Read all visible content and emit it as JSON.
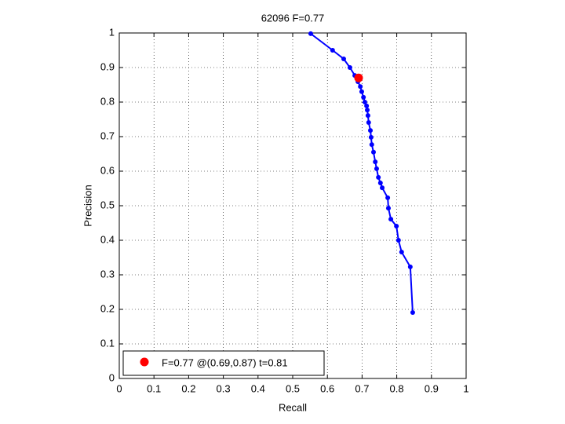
{
  "chart_data": {
    "type": "line",
    "title": "62096 F=0.77",
    "xlabel": "Recall",
    "ylabel": "Precision",
    "series": [
      {
        "color": "#0000ff",
        "x": [
          0.552,
          0.615,
          0.647,
          0.665,
          0.679,
          0.688,
          0.695,
          0.699,
          0.704,
          0.708,
          0.713,
          0.715,
          0.717,
          0.719,
          0.724,
          0.726,
          0.728,
          0.733,
          0.738,
          0.742,
          0.747,
          0.753,
          0.758,
          0.774,
          0.776,
          0.783,
          0.799,
          0.805,
          0.814,
          0.839,
          0.846
        ],
        "values": [
          0.998,
          0.95,
          0.925,
          0.9,
          0.877,
          0.859,
          0.845,
          0.83,
          0.814,
          0.8,
          0.789,
          0.777,
          0.761,
          0.741,
          0.718,
          0.698,
          0.677,
          0.655,
          0.627,
          0.607,
          0.582,
          0.566,
          0.552,
          0.523,
          0.493,
          0.461,
          0.441,
          0.4,
          0.366,
          0.323,
          0.191
        ]
      }
    ],
    "best": {
      "name": "F=0.77 @(0.69,0.87) t=0.81",
      "color": "#ff0000",
      "x": 0.69,
      "y": 0.87
    },
    "xlim": [
      0,
      1
    ],
    "ylim": [
      0,
      1
    ],
    "xticks": [
      0,
      0.1,
      0.2,
      0.3,
      0.4,
      0.5,
      0.6,
      0.7,
      0.8,
      0.9,
      1
    ],
    "yticks": [
      0,
      0.1,
      0.2,
      0.3,
      0.4,
      0.5,
      0.6,
      0.7,
      0.8,
      0.9,
      1
    ],
    "grid": true,
    "legend": "lower left"
  }
}
